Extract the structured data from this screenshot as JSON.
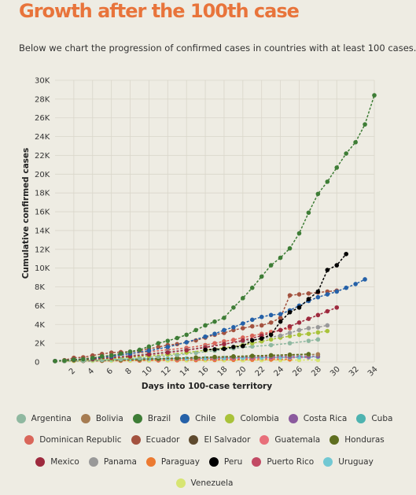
{
  "header": {
    "title": "Growth after the 100th case",
    "subtitle": "Below we chart the progression of confirmed cases in countries with at least 100 cases."
  },
  "chart_data": {
    "type": "line",
    "title": "Growth after the 100th case",
    "xlabel": "Days into 100-case territory",
    "ylabel": "Cumulative confirmed cases",
    "xlim": [
      0,
      34
    ],
    "ylim": [
      0,
      30000
    ],
    "x_ticks": [
      2,
      4,
      6,
      8,
      10,
      12,
      14,
      16,
      18,
      20,
      22,
      24,
      26,
      28,
      30,
      32,
      34
    ],
    "y_ticks": [
      0,
      2000,
      4000,
      6000,
      8000,
      10000,
      12000,
      14000,
      16000,
      18000,
      20000,
      22000,
      24000,
      26000,
      28000,
      30000
    ],
    "y_tick_labels": [
      "0",
      "2K",
      "4K",
      "6K",
      "8K",
      "10K",
      "12K",
      "14K",
      "16K",
      "18K",
      "20K",
      "22K",
      "24K",
      "26K",
      "28K",
      "30K"
    ],
    "grid": true,
    "series": [
      {
        "name": "Argentina",
        "color": "#8fb8a0",
        "x": [
          1,
          3,
          5,
          7,
          9,
          11,
          13,
          15,
          17,
          19,
          21,
          23,
          25,
          27,
          28
        ],
        "y": [
          100,
          150,
          220,
          300,
          400,
          560,
          750,
          970,
          1200,
          1450,
          1650,
          1800,
          2000,
          2250,
          2400
        ]
      },
      {
        "name": "Bolivia",
        "color": "#a67c52",
        "x": [
          1,
          3,
          5,
          7,
          9,
          11,
          13,
          15,
          17,
          19,
          21,
          23,
          25,
          27,
          28
        ],
        "y": [
          100,
          120,
          150,
          190,
          240,
          300,
          360,
          420,
          480,
          540,
          600,
          660,
          720,
          780,
          820
        ]
      },
      {
        "name": "Brazil",
        "color": "#3e7d36",
        "x": [
          0,
          1,
          2,
          3,
          4,
          5,
          6,
          7,
          8,
          9,
          10,
          11,
          12,
          13,
          14,
          15,
          16,
          17,
          18,
          19,
          20,
          21,
          22,
          23,
          24,
          25,
          26,
          27,
          28,
          29,
          30,
          31,
          32,
          33,
          34
        ],
        "y": [
          100,
          150,
          250,
          300,
          430,
          600,
          700,
          900,
          1100,
          1300,
          1650,
          2000,
          2250,
          2550,
          2900,
          3400,
          3900,
          4300,
          4700,
          5800,
          6800,
          7900,
          9100,
          10300,
          11100,
          12100,
          13700,
          15900,
          17900,
          19200,
          20700,
          22200,
          23400,
          25300,
          28400
        ]
      },
      {
        "name": "Chile",
        "color": "#2561a8",
        "x": [
          0,
          2,
          4,
          6,
          8,
          10,
          12,
          14,
          16,
          17,
          18,
          19,
          20,
          21,
          22,
          23,
          24,
          25,
          26,
          27,
          28,
          29,
          30,
          31,
          32,
          33
        ],
        "y": [
          100,
          250,
          400,
          600,
          900,
          1200,
          1600,
          2100,
          2700,
          3000,
          3400,
          3700,
          4100,
          4500,
          4800,
          5000,
          5100,
          5500,
          6000,
          6500,
          6900,
          7200,
          7500,
          7900,
          8300,
          8800
        ]
      },
      {
        "name": "Colombia",
        "color": "#a9c23a",
        "x": [
          0,
          2,
          4,
          6,
          8,
          10,
          12,
          14,
          16,
          18,
          20,
          21,
          22,
          23,
          24,
          25,
          26,
          27,
          28,
          29
        ],
        "y": [
          100,
          150,
          250,
          350,
          500,
          650,
          800,
          1000,
          1250,
          1500,
          1800,
          2000,
          2200,
          2400,
          2600,
          2750,
          2900,
          3000,
          3150,
          3300
        ]
      },
      {
        "name": "Costa Rica",
        "color": "#8b5a9e",
        "x": [
          1,
          3,
          5,
          7,
          9,
          11,
          13,
          15,
          17,
          19,
          21,
          23,
          25,
          27,
          28
        ],
        "y": [
          100,
          130,
          170,
          220,
          270,
          330,
          380,
          420,
          450,
          480,
          510,
          540,
          560,
          580,
          600
        ]
      },
      {
        "name": "Cuba",
        "color": "#4eb3b0",
        "x": [
          1,
          3,
          5,
          7,
          9,
          11,
          13,
          15,
          17,
          19,
          21,
          23,
          25,
          27,
          28
        ],
        "y": [
          100,
          130,
          170,
          220,
          270,
          320,
          380,
          440,
          500,
          560,
          620,
          680,
          730,
          780,
          800
        ]
      },
      {
        "name": "Dominican Republic",
        "color": "#d9665a",
        "x": [
          0,
          2,
          4,
          6,
          8,
          10,
          12,
          14,
          16,
          17,
          18,
          19,
          20,
          21,
          22,
          23,
          24,
          25
        ],
        "y": [
          100,
          250,
          450,
          700,
          900,
          1100,
          1300,
          1500,
          1800,
          2000,
          2200,
          2350,
          2600,
          2800,
          3000,
          3200,
          3400,
          3600
        ]
      },
      {
        "name": "Ecuador",
        "color": "#a3523f",
        "x": [
          0,
          1,
          2,
          3,
          4,
          5,
          6,
          7,
          8,
          9,
          10,
          11,
          12,
          13,
          14,
          15,
          16,
          17,
          18,
          19,
          20,
          21,
          22,
          23,
          24,
          25,
          26,
          27,
          28,
          29,
          30
        ],
        "y": [
          100,
          200,
          450,
          500,
          700,
          850,
          1000,
          1050,
          1100,
          1200,
          1400,
          1600,
          1800,
          1900,
          2100,
          2300,
          2600,
          2900,
          3100,
          3400,
          3600,
          3800,
          3900,
          4200,
          4700,
          7100,
          7200,
          7300,
          7400,
          7500,
          7600
        ]
      },
      {
        "name": "El Salvador",
        "color": "#5e4a2e",
        "x": [
          1,
          3,
          5,
          7,
          9,
          11,
          13,
          15,
          17,
          19,
          21,
          23,
          25
        ],
        "y": [
          100,
          120,
          150,
          180,
          210,
          240,
          270,
          300,
          330,
          360,
          390,
          420,
          450
        ]
      },
      {
        "name": "Guatemala",
        "color": "#e86f7a",
        "x": [
          1,
          3,
          5,
          7,
          9,
          11,
          13,
          15,
          17,
          19,
          21,
          23,
          25,
          27
        ],
        "y": [
          100,
          120,
          150,
          180,
          210,
          240,
          270,
          300,
          330,
          360,
          390,
          420,
          450,
          480
        ]
      },
      {
        "name": "Honduras",
        "color": "#5e6e1f",
        "x": [
          1,
          3,
          5,
          7,
          9,
          11,
          13,
          15,
          17,
          19,
          21,
          23,
          25,
          27
        ],
        "y": [
          100,
          140,
          190,
          250,
          300,
          360,
          420,
          480,
          540,
          600,
          660,
          720,
          780,
          840
        ]
      },
      {
        "name": "Mexico",
        "color": "#9e2a3e",
        "x": [
          0,
          2,
          4,
          6,
          8,
          10,
          12,
          14,
          16,
          18,
          20,
          22,
          24,
          25,
          26,
          27,
          28,
          29,
          30
        ],
        "y": [
          100,
          200,
          300,
          450,
          600,
          800,
          1000,
          1250,
          1550,
          1900,
          2300,
          2800,
          3400,
          3800,
          4200,
          4600,
          5000,
          5400,
          5800
        ]
      },
      {
        "name": "Panama",
        "color": "#999999",
        "x": [
          0,
          2,
          4,
          6,
          8,
          10,
          12,
          14,
          16,
          18,
          20,
          22,
          24,
          25,
          26,
          27,
          28,
          29
        ],
        "y": [
          100,
          250,
          400,
          550,
          700,
          900,
          1100,
          1300,
          1600,
          1900,
          2200,
          2500,
          2800,
          3100,
          3400,
          3600,
          3700,
          3900
        ]
      },
      {
        "name": "Paraguay",
        "color": "#ec7a31",
        "x": [
          1,
          3,
          5,
          7,
          9,
          11,
          13,
          15,
          17,
          19,
          21,
          23,
          25
        ],
        "y": [
          100,
          110,
          120,
          135,
          150,
          165,
          180,
          195,
          210,
          225,
          240,
          255,
          270
        ]
      },
      {
        "name": "Peru",
        "color": "#000000",
        "x": [
          16,
          17,
          18,
          19,
          20,
          21,
          22,
          23,
          24,
          25,
          26,
          27,
          28,
          29,
          30,
          31
        ],
        "y": [
          1300,
          1350,
          1400,
          1600,
          1700,
          2300,
          2500,
          2900,
          4300,
          5300,
          5800,
          6700,
          7500,
          9800,
          10300,
          11500
        ]
      },
      {
        "name": "Puerto Rico",
        "color": "#c24a64",
        "x": [
          1,
          3,
          5,
          7,
          9,
          11,
          13,
          15,
          17,
          19,
          21,
          23,
          25
        ],
        "y": [
          100,
          130,
          170,
          220,
          280,
          340,
          400,
          460,
          520,
          580,
          640,
          700,
          760
        ]
      },
      {
        "name": "Uruguay",
        "color": "#72c8d3",
        "x": [
          0,
          2,
          4,
          6,
          8,
          10,
          12,
          14,
          16,
          18,
          20,
          22,
          24,
          25,
          26,
          27,
          28
        ],
        "y": [
          100,
          150,
          200,
          250,
          300,
          330,
          360,
          380,
          400,
          420,
          450,
          470,
          490,
          500,
          510,
          520,
          530
        ]
      },
      {
        "name": "Venezuela",
        "color": "#d7e572",
        "x": [
          0,
          2,
          4,
          6,
          8,
          10,
          12,
          14,
          16,
          18,
          20,
          22,
          24,
          26,
          28
        ],
        "y": [
          100,
          110,
          120,
          135,
          150,
          160,
          170,
          175,
          180,
          185,
          190,
          195,
          200,
          205,
          210
        ]
      }
    ]
  },
  "legend_rows": [
    [
      "Argentina",
      "Bolivia",
      "Brazil",
      "Chile",
      "Colombia",
      "Costa Rica",
      "Cuba"
    ],
    [
      "Dominican Republic",
      "Ecuador",
      "El Salvador",
      "Guatemala",
      "Honduras"
    ],
    [
      "Mexico",
      "Panama",
      "Paraguay",
      "Peru",
      "Puerto Rico",
      "Uruguay"
    ],
    [
      "Venezuela"
    ]
  ]
}
